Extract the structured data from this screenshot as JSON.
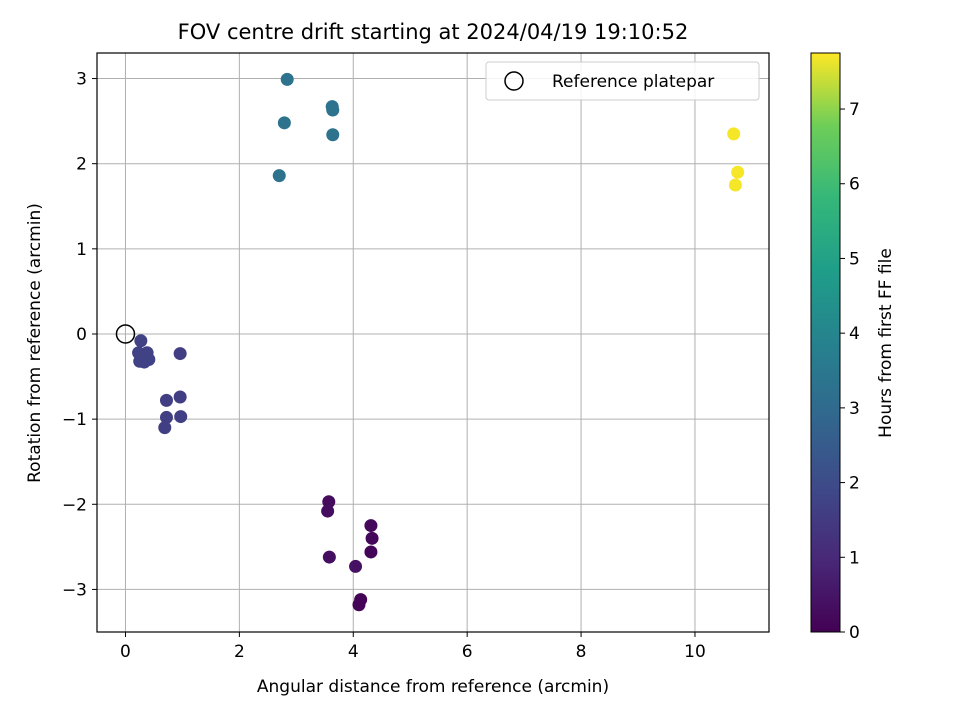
{
  "chart_data": {
    "type": "scatter",
    "title": "FOV centre drift starting at 2024/04/19 19:10:52",
    "xlabel": "Angular distance from reference (arcmin)",
    "ylabel": "Rotation from reference (arcmin)",
    "xlim": [
      -0.5,
      11.3
    ],
    "ylim": [
      -3.5,
      3.3
    ],
    "xticks": [
      0,
      2,
      4,
      6,
      8,
      10
    ],
    "yticks": [
      -3,
      -2,
      -1,
      0,
      1,
      2,
      3
    ],
    "grid": true,
    "legend": {
      "position": "top-right",
      "entries": [
        "Reference platepar"
      ]
    },
    "reference_point": {
      "x": 0,
      "y": 0
    },
    "colormap": "viridis",
    "colorbar": {
      "label": "Hours from first FF file",
      "range": [
        0,
        7.75
      ],
      "ticks": [
        0,
        1,
        2,
        3,
        4,
        5,
        6,
        7
      ]
    },
    "points": [
      {
        "x": 3.57,
        "y": -1.97,
        "hours": 0.25
      },
      {
        "x": 3.55,
        "y": -2.08,
        "hours": 0.3
      },
      {
        "x": 3.58,
        "y": -2.62,
        "hours": 0.35
      },
      {
        "x": 4.04,
        "y": -2.73,
        "hours": 0.4
      },
      {
        "x": 4.31,
        "y": -2.25,
        "hours": 0.2
      },
      {
        "x": 4.33,
        "y": -2.4,
        "hours": 0.15
      },
      {
        "x": 4.31,
        "y": -2.56,
        "hours": 0.1
      },
      {
        "x": 4.13,
        "y": -3.12,
        "hours": 0.05
      },
      {
        "x": 4.1,
        "y": -3.18,
        "hours": 0.05
      },
      {
        "x": 0.27,
        "y": -0.08,
        "hours": 1.7
      },
      {
        "x": 0.23,
        "y": -0.22,
        "hours": 1.7
      },
      {
        "x": 0.25,
        "y": -0.32,
        "hours": 1.7
      },
      {
        "x": 0.33,
        "y": -0.25,
        "hours": 1.7
      },
      {
        "x": 0.38,
        "y": -0.22,
        "hours": 1.7
      },
      {
        "x": 0.41,
        "y": -0.3,
        "hours": 1.7
      },
      {
        "x": 0.33,
        "y": -0.33,
        "hours": 1.7
      },
      {
        "x": 0.96,
        "y": -0.23,
        "hours": 1.6
      },
      {
        "x": 0.72,
        "y": -0.78,
        "hours": 1.6
      },
      {
        "x": 0.96,
        "y": -0.74,
        "hours": 1.6
      },
      {
        "x": 0.72,
        "y": -0.98,
        "hours": 1.6
      },
      {
        "x": 0.97,
        "y": -0.97,
        "hours": 1.6
      },
      {
        "x": 0.69,
        "y": -1.1,
        "hours": 1.6
      },
      {
        "x": 2.84,
        "y": 2.99,
        "hours": 3.3
      },
      {
        "x": 3.63,
        "y": 2.67,
        "hours": 3.3
      },
      {
        "x": 3.64,
        "y": 2.63,
        "hours": 3.3
      },
      {
        "x": 2.79,
        "y": 2.48,
        "hours": 3.3
      },
      {
        "x": 3.64,
        "y": 2.34,
        "hours": 3.3
      },
      {
        "x": 2.7,
        "y": 1.86,
        "hours": 3.3
      },
      {
        "x": 10.68,
        "y": 2.35,
        "hours": 7.7
      },
      {
        "x": 10.75,
        "y": 1.9,
        "hours": 7.7
      },
      {
        "x": 10.71,
        "y": 1.75,
        "hours": 7.7
      }
    ]
  }
}
